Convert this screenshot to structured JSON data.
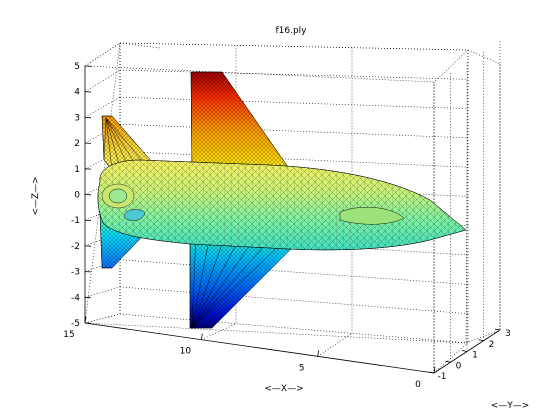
{
  "chart_data": {
    "type": "surface-3d",
    "title": "f16.ply",
    "xlabel": "<—X—>",
    "ylabel": "<—Y—>",
    "zlabel": "<—Z—>",
    "grid": true,
    "colormap": "jet",
    "x_ticks": [
      "15",
      "10",
      "5",
      "0"
    ],
    "y_ticks": [
      "-1",
      "0",
      "1",
      "2",
      "3"
    ],
    "z_ticks": [
      "5",
      "4",
      "3",
      "2",
      "1",
      "0",
      "-1",
      "-2",
      "-3",
      "-4",
      "-5"
    ],
    "xlim": [
      0,
      15
    ],
    "ylim": [
      -1,
      3
    ],
    "zlim": [
      -5,
      5
    ],
    "colors": {
      "jet": [
        "#00008f",
        "#0000ff",
        "#0080ff",
        "#00ffff",
        "#80ff80",
        "#ffff00",
        "#ff8000",
        "#ff0000",
        "#800000"
      ]
    }
  }
}
